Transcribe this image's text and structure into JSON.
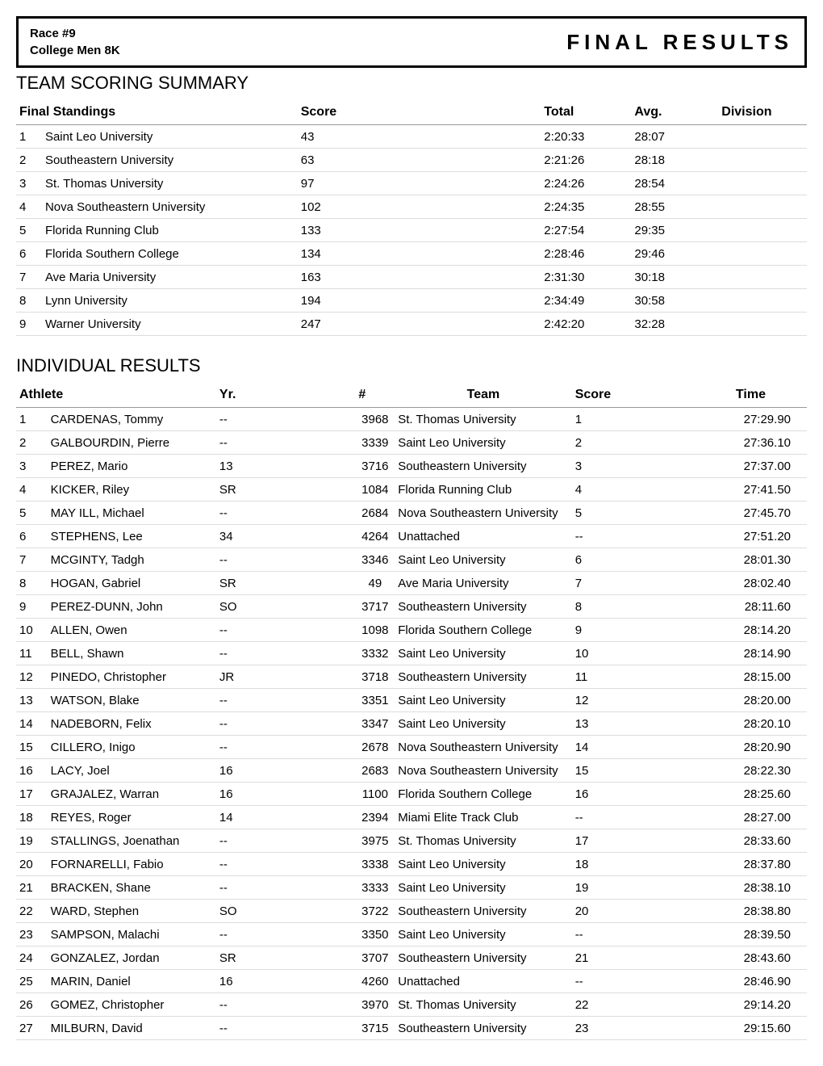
{
  "header": {
    "race_line1": "Race #9",
    "race_line2": "College Men 8K",
    "title_right": "FINAL RESULTS"
  },
  "team_section": {
    "title": "TEAM SCORING SUMMARY",
    "columns": [
      "Final Standings",
      "Score",
      "Total",
      "Avg.",
      "Division"
    ],
    "rows": [
      {
        "place": "1",
        "name": "Saint Leo University",
        "score": "43",
        "total": "2:20:33",
        "avg": "28:07",
        "div": ""
      },
      {
        "place": "2",
        "name": "Southeastern University",
        "score": "63",
        "total": "2:21:26",
        "avg": "28:18",
        "div": ""
      },
      {
        "place": "3",
        "name": "St. Thomas University",
        "score": "97",
        "total": "2:24:26",
        "avg": "28:54",
        "div": ""
      },
      {
        "place": "4",
        "name": "Nova Southeastern University",
        "score": "102",
        "total": "2:24:35",
        "avg": "28:55",
        "div": ""
      },
      {
        "place": "5",
        "name": "Florida Running Club",
        "score": "133",
        "total": "2:27:54",
        "avg": "29:35",
        "div": ""
      },
      {
        "place": "6",
        "name": "Florida Southern College",
        "score": "134",
        "total": "2:28:46",
        "avg": "29:46",
        "div": ""
      },
      {
        "place": "7",
        "name": "Ave Maria University",
        "score": "163",
        "total": "2:31:30",
        "avg": "30:18",
        "div": ""
      },
      {
        "place": "8",
        "name": "Lynn University",
        "score": "194",
        "total": "2:34:49",
        "avg": "30:58",
        "div": ""
      },
      {
        "place": "9",
        "name": "Warner University",
        "score": "247",
        "total": "2:42:20",
        "avg": "32:28",
        "div": ""
      }
    ]
  },
  "ind_section": {
    "title": "INDIVIDUAL RESULTS",
    "columns": [
      "Athlete",
      "Yr.",
      "#",
      "Team",
      "Score",
      "Time"
    ],
    "rows": [
      {
        "place": "1",
        "athlete": "CARDENAS, Tommy",
        "yr": "--",
        "num": "3968",
        "team": "St. Thomas University",
        "score": "1",
        "time": "27:29.90"
      },
      {
        "place": "2",
        "athlete": "GALBOURDIN, Pierre",
        "yr": "--",
        "num": "3339",
        "team": "Saint Leo University",
        "score": "2",
        "time": "27:36.10"
      },
      {
        "place": "3",
        "athlete": "PEREZ, Mario",
        "yr": "13",
        "num": "3716",
        "team": "Southeastern University",
        "score": "3",
        "time": "27:37.00"
      },
      {
        "place": "4",
        "athlete": "KICKER, Riley",
        "yr": "SR",
        "num": "1084",
        "team": "Florida Running Club",
        "score": "4",
        "time": "27:41.50"
      },
      {
        "place": "5",
        "athlete": "MAY ILL, Michael",
        "yr": "--",
        "num": "2684",
        "team": "Nova Southeastern University",
        "score": "5",
        "time": "27:45.70"
      },
      {
        "place": "6",
        "athlete": "STEPHENS, Lee",
        "yr": "34",
        "num": "4264",
        "team": "Unattached",
        "score": "--",
        "time": "27:51.20"
      },
      {
        "place": "7",
        "athlete": "MCGINTY, Tadgh",
        "yr": "--",
        "num": "3346",
        "team": "Saint Leo University",
        "score": "6",
        "time": "28:01.30"
      },
      {
        "place": "8",
        "athlete": "HOGAN, Gabriel",
        "yr": "SR",
        "num": "49",
        "team": "Ave Maria University",
        "score": "7",
        "time": "28:02.40"
      },
      {
        "place": "9",
        "athlete": "PEREZ-DUNN, John",
        "yr": "SO",
        "num": "3717",
        "team": "Southeastern University",
        "score": "8",
        "time": "28:11.60"
      },
      {
        "place": "10",
        "athlete": "ALLEN, Owen",
        "yr": "--",
        "num": "1098",
        "team": "Florida Southern College",
        "score": "9",
        "time": "28:14.20"
      },
      {
        "place": "11",
        "athlete": "BELL, Shawn",
        "yr": "--",
        "num": "3332",
        "team": "Saint Leo University",
        "score": "10",
        "time": "28:14.90"
      },
      {
        "place": "12",
        "athlete": "PINEDO, Christopher",
        "yr": "JR",
        "num": "3718",
        "team": "Southeastern University",
        "score": "11",
        "time": "28:15.00"
      },
      {
        "place": "13",
        "athlete": "WATSON, Blake",
        "yr": "--",
        "num": "3351",
        "team": "Saint Leo University",
        "score": "12",
        "time": "28:20.00"
      },
      {
        "place": "14",
        "athlete": "NADEBORN, Felix",
        "yr": "--",
        "num": "3347",
        "team": "Saint Leo University",
        "score": "13",
        "time": "28:20.10"
      },
      {
        "place": "15",
        "athlete": "CILLERO, Inigo",
        "yr": "--",
        "num": "2678",
        "team": "Nova Southeastern University",
        "score": "14",
        "time": "28:20.90"
      },
      {
        "place": "16",
        "athlete": "LACY, Joel",
        "yr": "16",
        "num": "2683",
        "team": "Nova Southeastern University",
        "score": "15",
        "time": "28:22.30"
      },
      {
        "place": "17",
        "athlete": "GRAJALEZ, Warran",
        "yr": "16",
        "num": "1100",
        "team": "Florida Southern College",
        "score": "16",
        "time": "28:25.60"
      },
      {
        "place": "18",
        "athlete": "REYES, Roger",
        "yr": "14",
        "num": "2394",
        "team": "Miami Elite Track Club",
        "score": "--",
        "time": "28:27.00"
      },
      {
        "place": "19",
        "athlete": "STALLINGS, Joenathan",
        "yr": "--",
        "num": "3975",
        "team": "St. Thomas University",
        "score": "17",
        "time": "28:33.60"
      },
      {
        "place": "20",
        "athlete": "FORNARELLI, Fabio",
        "yr": "--",
        "num": "3338",
        "team": "Saint Leo University",
        "score": "18",
        "time": "28:37.80"
      },
      {
        "place": "21",
        "athlete": "BRACKEN, Shane",
        "yr": "--",
        "num": "3333",
        "team": "Saint Leo University",
        "score": "19",
        "time": "28:38.10"
      },
      {
        "place": "22",
        "athlete": "WARD, Stephen",
        "yr": "SO",
        "num": "3722",
        "team": "Southeastern University",
        "score": "20",
        "time": "28:38.80"
      },
      {
        "place": "23",
        "athlete": "SAMPSON, Malachi",
        "yr": "--",
        "num": "3350",
        "team": "Saint Leo University",
        "score": "--",
        "time": "28:39.50"
      },
      {
        "place": "24",
        "athlete": "GONZALEZ, Jordan",
        "yr": "SR",
        "num": "3707",
        "team": "Southeastern University",
        "score": "21",
        "time": "28:43.60"
      },
      {
        "place": "25",
        "athlete": "MARIN, Daniel",
        "yr": "16",
        "num": "4260",
        "team": "Unattached",
        "score": "--",
        "time": "28:46.90"
      },
      {
        "place": "26",
        "athlete": "GOMEZ, Christopher",
        "yr": "--",
        "num": "3970",
        "team": "St. Thomas University",
        "score": "22",
        "time": "29:14.20"
      },
      {
        "place": "27",
        "athlete": "MILBURN, David",
        "yr": "--",
        "num": "3715",
        "team": "Southeastern University",
        "score": "23",
        "time": "29:15.60"
      }
    ]
  }
}
